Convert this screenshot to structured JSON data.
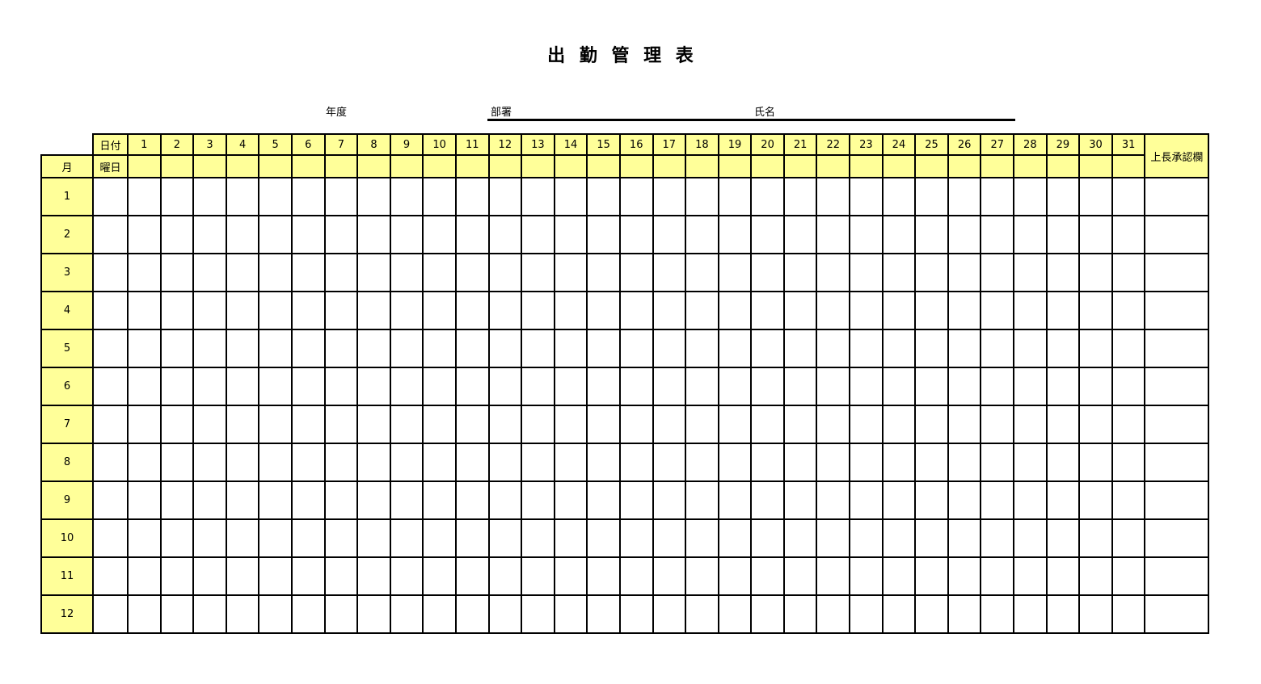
{
  "header": {
    "title": "出 勤 管 理 表",
    "fiscal_year_label": "年度",
    "department_label": "部署",
    "name_label": "氏名"
  },
  "table": {
    "date_label": "日付",
    "weekday_label": "曜日",
    "month_label": "月",
    "approval_label": "上長承認欄",
    "day_numbers": [
      "1",
      "2",
      "3",
      "4",
      "5",
      "6",
      "7",
      "8",
      "9",
      "10",
      "11",
      "12",
      "13",
      "14",
      "15",
      "16",
      "17",
      "18",
      "19",
      "20",
      "21",
      "22",
      "23",
      "24",
      "25",
      "26",
      "27",
      "28",
      "29",
      "30",
      "31"
    ],
    "month_numbers": [
      "1",
      "2",
      "3",
      "4",
      "5",
      "6",
      "7",
      "8",
      "9",
      "10",
      "11",
      "12"
    ]
  },
  "colors": {
    "header_fill": "#FFFF99",
    "grid_line": "#000000"
  }
}
